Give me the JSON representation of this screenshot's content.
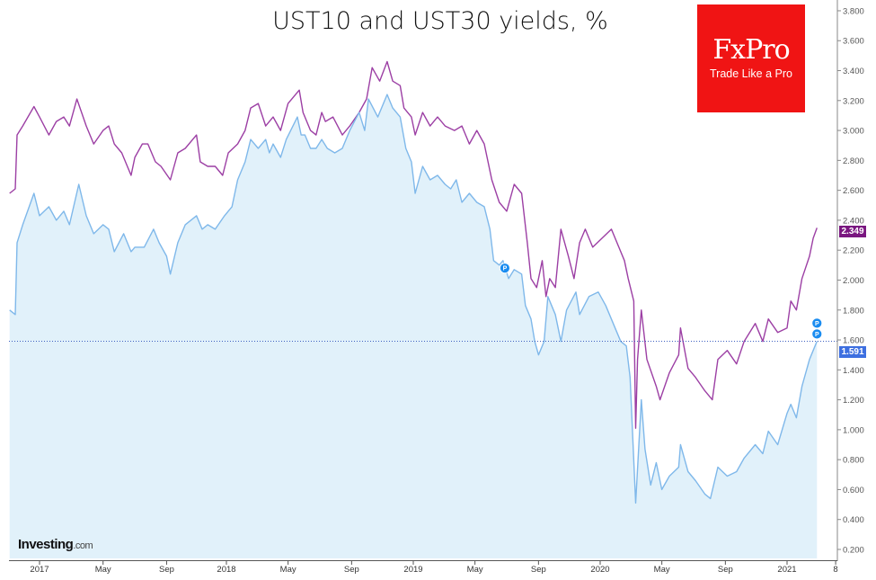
{
  "chart_data": {
    "type": "line",
    "title": "UST10 and UST30 yields, %",
    "xlabel": "",
    "ylabel": "",
    "ylim": [
      0.2,
      3.8
    ],
    "xlim": [
      2016.84,
      2021.26
    ],
    "grid": false,
    "y_ticks": [
      "0.200",
      "0.400",
      "0.600",
      "0.800",
      "1.000",
      "1.200",
      "1.400",
      "1.600",
      "1.800",
      "2.000",
      "2.200",
      "2.400",
      "2.600",
      "2.800",
      "3.000",
      "3.200",
      "3.400",
      "3.600",
      "3.800"
    ],
    "x_ticks": [
      {
        "label": "2017",
        "t": 2017.0
      },
      {
        "label": "May",
        "t": 2017.34
      },
      {
        "label": "Sep",
        "t": 2017.68
      },
      {
        "label": "2018",
        "t": 2018.0
      },
      {
        "label": "May",
        "t": 2018.33
      },
      {
        "label": "Sep",
        "t": 2018.67
      },
      {
        "label": "2019",
        "t": 2019.0
      },
      {
        "label": "May",
        "t": 2019.33
      },
      {
        "label": "Sep",
        "t": 2019.67
      },
      {
        "label": "2020",
        "t": 2020.0
      },
      {
        "label": "May",
        "t": 2020.33
      },
      {
        "label": "Sep",
        "t": 2020.67
      },
      {
        "label": "2021",
        "t": 2021.0
      },
      {
        "label": "8",
        "t": 2021.26
      }
    ],
    "series": [
      {
        "name": "UST30",
        "color": "#9c3fa4",
        "last_value_label": "2.349",
        "label_color": "#7a1780",
        "t": [
          2016.84,
          2016.87,
          2016.88,
          2016.91,
          2016.97,
          2017.0,
          2017.05,
          2017.09,
          2017.13,
          2017.16,
          2017.2,
          2017.25,
          2017.29,
          2017.34,
          2017.37,
          2017.4,
          2017.44,
          2017.49,
          2017.51,
          2017.55,
          2017.58,
          2017.62,
          2017.65,
          2017.7,
          2017.74,
          2017.78,
          2017.84,
          2017.86,
          2017.9,
          2017.94,
          2017.98,
          2018.01,
          2018.06,
          2018.1,
          2018.13,
          2018.17,
          2018.21,
          2018.25,
          2018.29,
          2018.33,
          2018.39,
          2018.41,
          2018.45,
          2018.48,
          2018.51,
          2018.53,
          2018.57,
          2018.62,
          2018.66,
          2018.71,
          2018.75,
          2018.78,
          2018.82,
          2018.86,
          2018.89,
          2018.93,
          2018.95,
          2018.99,
          2019.01,
          2019.05,
          2019.09,
          2019.13,
          2019.17,
          2019.22,
          2019.26,
          2019.3,
          2019.34,
          2019.38,
          2019.42,
          2019.46,
          2019.5,
          2019.54,
          2019.58,
          2019.61,
          2019.63,
          2019.66,
          2019.69,
          2019.71,
          2019.73,
          2019.76,
          2019.79,
          2019.83,
          2019.86,
          2019.89,
          2019.92,
          2019.96,
          2020.01,
          2020.06,
          2020.1,
          2020.13,
          2020.15,
          2020.18,
          2020.19,
          2020.2,
          2020.22,
          2020.25,
          2020.3,
          2020.32,
          2020.37,
          2020.42,
          2020.43,
          2020.47,
          2020.51,
          2020.56,
          2020.6,
          2020.63,
          2020.68,
          2020.73,
          2020.77,
          2020.83,
          2020.87,
          2020.9,
          2020.95,
          2021.0,
          2021.02,
          2021.05,
          2021.08,
          2021.12,
          2021.14,
          2021.16
        ],
        "v": [
          2.58,
          2.61,
          2.97,
          3.03,
          3.16,
          3.09,
          2.97,
          3.06,
          3.09,
          3.03,
          3.21,
          3.03,
          2.91,
          3.0,
          3.03,
          2.91,
          2.85,
          2.7,
          2.82,
          2.91,
          2.91,
          2.79,
          2.76,
          2.67,
          2.85,
          2.88,
          2.97,
          2.79,
          2.76,
          2.76,
          2.7,
          2.85,
          2.91,
          3.0,
          3.15,
          3.18,
          3.03,
          3.09,
          3.0,
          3.18,
          3.27,
          3.12,
          3.0,
          2.97,
          3.12,
          3.06,
          3.09,
          2.97,
          3.03,
          3.12,
          3.21,
          3.42,
          3.33,
          3.46,
          3.33,
          3.3,
          3.15,
          3.09,
          2.97,
          3.12,
          3.03,
          3.09,
          3.03,
          3.0,
          3.03,
          2.91,
          3.0,
          2.91,
          2.67,
          2.52,
          2.46,
          2.64,
          2.58,
          2.25,
          2.01,
          1.95,
          2.13,
          1.89,
          2.01,
          1.95,
          2.34,
          2.16,
          2.01,
          2.25,
          2.34,
          2.22,
          2.28,
          2.34,
          2.22,
          2.13,
          2.01,
          1.86,
          1.01,
          1.47,
          1.8,
          1.47,
          1.29,
          1.2,
          1.38,
          1.5,
          1.68,
          1.41,
          1.35,
          1.26,
          1.2,
          1.47,
          1.53,
          1.44,
          1.59,
          1.71,
          1.59,
          1.74,
          1.65,
          1.68,
          1.86,
          1.8,
          2.01,
          2.16,
          2.28,
          2.349
        ]
      },
      {
        "name": "UST10",
        "color": "#7fb8ea",
        "fill": "#e1f1fa",
        "last_value_label": "1.591",
        "label_color": "#3d6fe0",
        "t": [
          2016.84,
          2016.87,
          2016.88,
          2016.91,
          2016.97,
          2017.0,
          2017.05,
          2017.09,
          2017.13,
          2017.16,
          2017.21,
          2017.25,
          2017.29,
          2017.34,
          2017.37,
          2017.4,
          2017.45,
          2017.49,
          2017.51,
          2017.56,
          2017.61,
          2017.64,
          2017.68,
          2017.7,
          2017.74,
          2017.78,
          2017.84,
          2017.87,
          2017.9,
          2017.94,
          2017.99,
          2018.03,
          2018.06,
          2018.1,
          2018.13,
          2018.17,
          2018.21,
          2018.23,
          2018.25,
          2018.29,
          2018.32,
          2018.38,
          2018.4,
          2018.42,
          2018.45,
          2018.48,
          2018.51,
          2018.54,
          2018.58,
          2018.62,
          2018.66,
          2018.71,
          2018.74,
          2018.76,
          2018.81,
          2018.86,
          2018.89,
          2018.93,
          2018.96,
          2018.99,
          2019.01,
          2019.05,
          2019.09,
          2019.13,
          2019.17,
          2019.2,
          2019.23,
          2019.26,
          2019.3,
          2019.34,
          2019.38,
          2019.41,
          2019.43,
          2019.46,
          2019.48,
          2019.51,
          2019.54,
          2019.58,
          2019.6,
          2019.63,
          2019.65,
          2019.67,
          2019.7,
          2019.72,
          2019.76,
          2019.79,
          2019.82,
          2019.87,
          2019.89,
          2019.94,
          2019.99,
          2020.03,
          2020.08,
          2020.11,
          2020.14,
          2020.16,
          2020.19,
          2020.22,
          2020.24,
          2020.27,
          2020.3,
          2020.33,
          2020.37,
          2020.42,
          2020.43,
          2020.47,
          2020.51,
          2020.56,
          2020.59,
          2020.63,
          2020.68,
          2020.73,
          2020.77,
          2020.83,
          2020.87,
          2020.9,
          2020.95,
          2021.0,
          2021.02,
          2021.05,
          2021.08,
          2021.12,
          2021.14,
          2021.16
        ],
        "v": [
          1.8,
          1.77,
          2.25,
          2.37,
          2.58,
          2.43,
          2.49,
          2.4,
          2.46,
          2.37,
          2.64,
          2.43,
          2.31,
          2.37,
          2.34,
          2.19,
          2.31,
          2.19,
          2.22,
          2.22,
          2.34,
          2.25,
          2.16,
          2.04,
          2.25,
          2.37,
          2.43,
          2.34,
          2.37,
          2.34,
          2.43,
          2.49,
          2.67,
          2.79,
          2.94,
          2.88,
          2.94,
          2.85,
          2.91,
          2.82,
          2.94,
          3.09,
          2.97,
          2.97,
          2.88,
          2.88,
          2.94,
          2.88,
          2.85,
          2.88,
          3.0,
          3.12,
          3.0,
          3.21,
          3.09,
          3.24,
          3.15,
          3.09,
          2.88,
          2.79,
          2.58,
          2.76,
          2.67,
          2.7,
          2.64,
          2.61,
          2.67,
          2.52,
          2.58,
          2.52,
          2.49,
          2.34,
          2.13,
          2.1,
          2.13,
          2.01,
          2.07,
          2.04,
          1.83,
          1.74,
          1.59,
          1.5,
          1.59,
          1.89,
          1.77,
          1.59,
          1.8,
          1.92,
          1.77,
          1.89,
          1.92,
          1.83,
          1.68,
          1.59,
          1.56,
          1.35,
          0.51,
          1.2,
          0.87,
          0.63,
          0.78,
          0.6,
          0.69,
          0.75,
          0.9,
          0.72,
          0.66,
          0.57,
          0.54,
          0.75,
          0.69,
          0.72,
          0.81,
          0.9,
          0.84,
          0.99,
          0.9,
          1.11,
          1.17,
          1.08,
          1.29,
          1.47,
          1.53,
          1.591
        ]
      }
    ],
    "markers": [
      {
        "label": "P",
        "t": 2019.49,
        "v": 2.08
      },
      {
        "label": "P",
        "t": 2021.16,
        "v": 1.64
      },
      {
        "label": "P",
        "t": 2021.16,
        "v": 1.69
      }
    ],
    "reference_line_value": 1.591
  },
  "logo": {
    "brand": "FxPro",
    "tagline": "Trade Like a Pro"
  },
  "watermark": {
    "name": "Investing",
    "suffix": ".com"
  }
}
